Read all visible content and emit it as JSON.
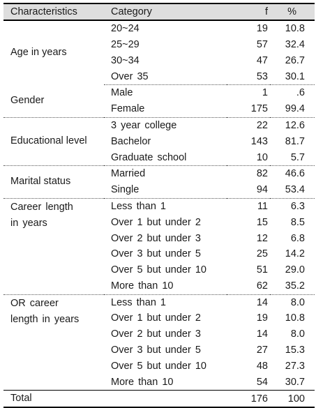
{
  "header": {
    "characteristics": "Characteristics",
    "category": "Category",
    "f": "f",
    "percent": "%"
  },
  "groups": [
    {
      "label": "Age in years",
      "rows": [
        {
          "category": "20~24",
          "f": "19",
          "pct": "10.8"
        },
        {
          "category": "25~29",
          "f": "57",
          "pct": "32.4"
        },
        {
          "category": "30~34",
          "f": "47",
          "pct": "26.7"
        },
        {
          "category": "Over 35",
          "f": "53",
          "pct": "30.1"
        }
      ]
    },
    {
      "label": "Gender",
      "rows": [
        {
          "category": "Male",
          "f": "1",
          "pct": ".6"
        },
        {
          "category": "Female",
          "f": "175",
          "pct": "99.4"
        }
      ]
    },
    {
      "label": "Educational level",
      "rows": [
        {
          "category": "3 year college",
          "f": "22",
          "pct": "12.6"
        },
        {
          "category": "Bachelor",
          "f": "143",
          "pct": "81.7"
        },
        {
          "category": "Graduate school",
          "f": "10",
          "pct": "5.7"
        }
      ]
    },
    {
      "label": "Marital status",
      "rows": [
        {
          "category": "Married",
          "f": "82",
          "pct": "46.6"
        },
        {
          "category": "Single",
          "f": "94",
          "pct": "53.4"
        }
      ]
    },
    {
      "label": "Career length in years",
      "rows": [
        {
          "category": "Less than 1",
          "f": "11",
          "pct": "6.3"
        },
        {
          "category": "Over 1 but under 2",
          "f": "15",
          "pct": "8.5"
        },
        {
          "category": "Over 2 but under 3",
          "f": "12",
          "pct": "6.8"
        },
        {
          "category": "Over 3 but under 5",
          "f": "25",
          "pct": "14.2"
        },
        {
          "category": "Over 5 but under 10",
          "f": "51",
          "pct": "29.0"
        },
        {
          "category": "More than 10",
          "f": "62",
          "pct": "35.2"
        }
      ]
    },
    {
      "label": "OR career length in years",
      "rows": [
        {
          "category": "Less than 1",
          "f": "14",
          "pct": "8.0"
        },
        {
          "category": "Over 1 but under 2",
          "f": "19",
          "pct": "10.8"
        },
        {
          "category": "Over 2 but under 3",
          "f": "14",
          "pct": "8.0"
        },
        {
          "category": "Over 3 but under 5",
          "f": "27",
          "pct": "15.3"
        },
        {
          "category": "Over 5 but under 10",
          "f": "48",
          "pct": "27.3"
        },
        {
          "category": "More than 10",
          "f": "54",
          "pct": "30.7"
        }
      ]
    }
  ],
  "total": {
    "label": "Total",
    "f": "176",
    "pct": "100"
  }
}
